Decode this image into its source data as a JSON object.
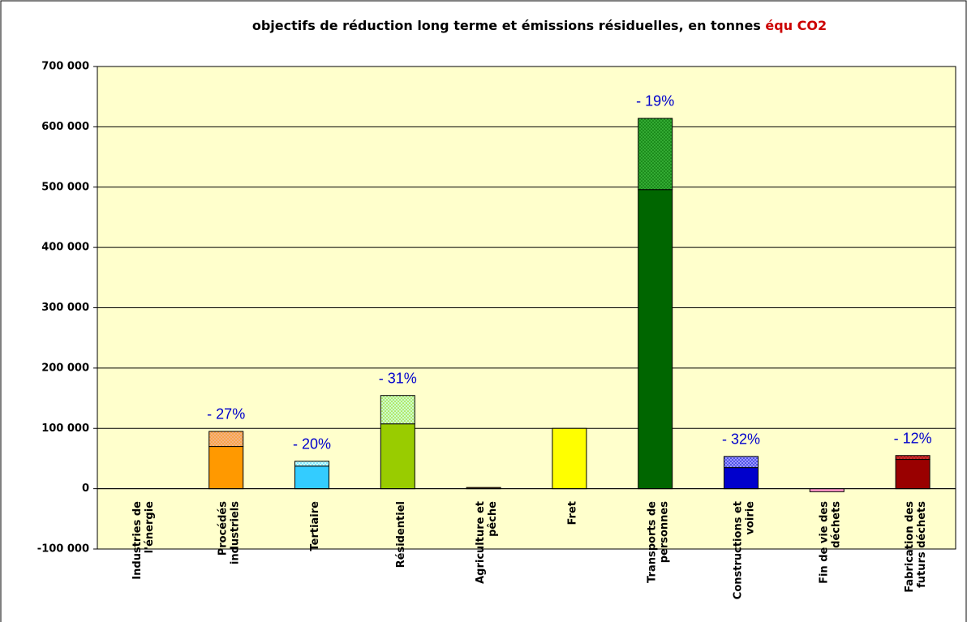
{
  "chart_data": {
    "type": "stacked_bar",
    "title": "objectifs de réduction long terme et émissions résiduelles, en tonnes",
    "title_highlight": "équ CO2",
    "categories": [
      [
        "Industries de",
        "l'énergie"
      ],
      [
        "Procédés",
        "industriels"
      ],
      [
        "Tertiaire"
      ],
      [
        "Résidentiel"
      ],
      [
        "Agriculture et",
        "pêche"
      ],
      [
        "Fret"
      ],
      [
        "Transports de",
        "personnes"
      ],
      [
        "Constructions et",
        "voirie"
      ],
      [
        "Fin de vie des",
        "déchets"
      ],
      [
        "Fabrication des",
        "futurs déchets"
      ]
    ],
    "series": [
      {
        "values": [
          0,
          70000,
          37500,
          107500,
          2000,
          100000,
          496000,
          35000,
          -5000,
          48500
        ],
        "colors": [
          "#999999",
          "#ff9900",
          "#33ccff",
          "#99cc00",
          "#663300",
          "#ffff00",
          "#006600",
          "#0000cc",
          "#ff99cc",
          "#990000"
        ]
      },
      {
        "values": [
          0,
          25000,
          8000,
          47000,
          0,
          0,
          118000,
          18500,
          0,
          6500
        ],
        "colors": [
          "#cccccc",
          "#f4b183",
          "#ccffff",
          "#ccffcc",
          "#cc9966",
          "#ffff99",
          "#33aa33",
          "#9999ff",
          "#ffccee",
          "#cc3333"
        ]
      }
    ],
    "annotations": [
      null,
      "- 27%",
      "- 20%",
      "- 31%",
      null,
      null,
      "- 19%",
      "- 32%",
      null,
      "- 12%"
    ],
    "ylim": [
      -100000,
      700000
    ],
    "yticks": [
      {
        "value": -100000,
        "label": "-100 000"
      },
      0,
      {
        "value": 100000,
        "label": "100 000"
      },
      {
        "value": 200000,
        "label": "200 000"
      },
      {
        "value": 300000,
        "label": "300 000"
      },
      {
        "value": 400000,
        "label": "400 000"
      },
      {
        "value": 500000,
        "label": "500 000"
      },
      {
        "value": 600000,
        "label": "600 000"
      },
      {
        "value": 700000,
        "label": "700 000"
      }
    ],
    "grid": true
  }
}
